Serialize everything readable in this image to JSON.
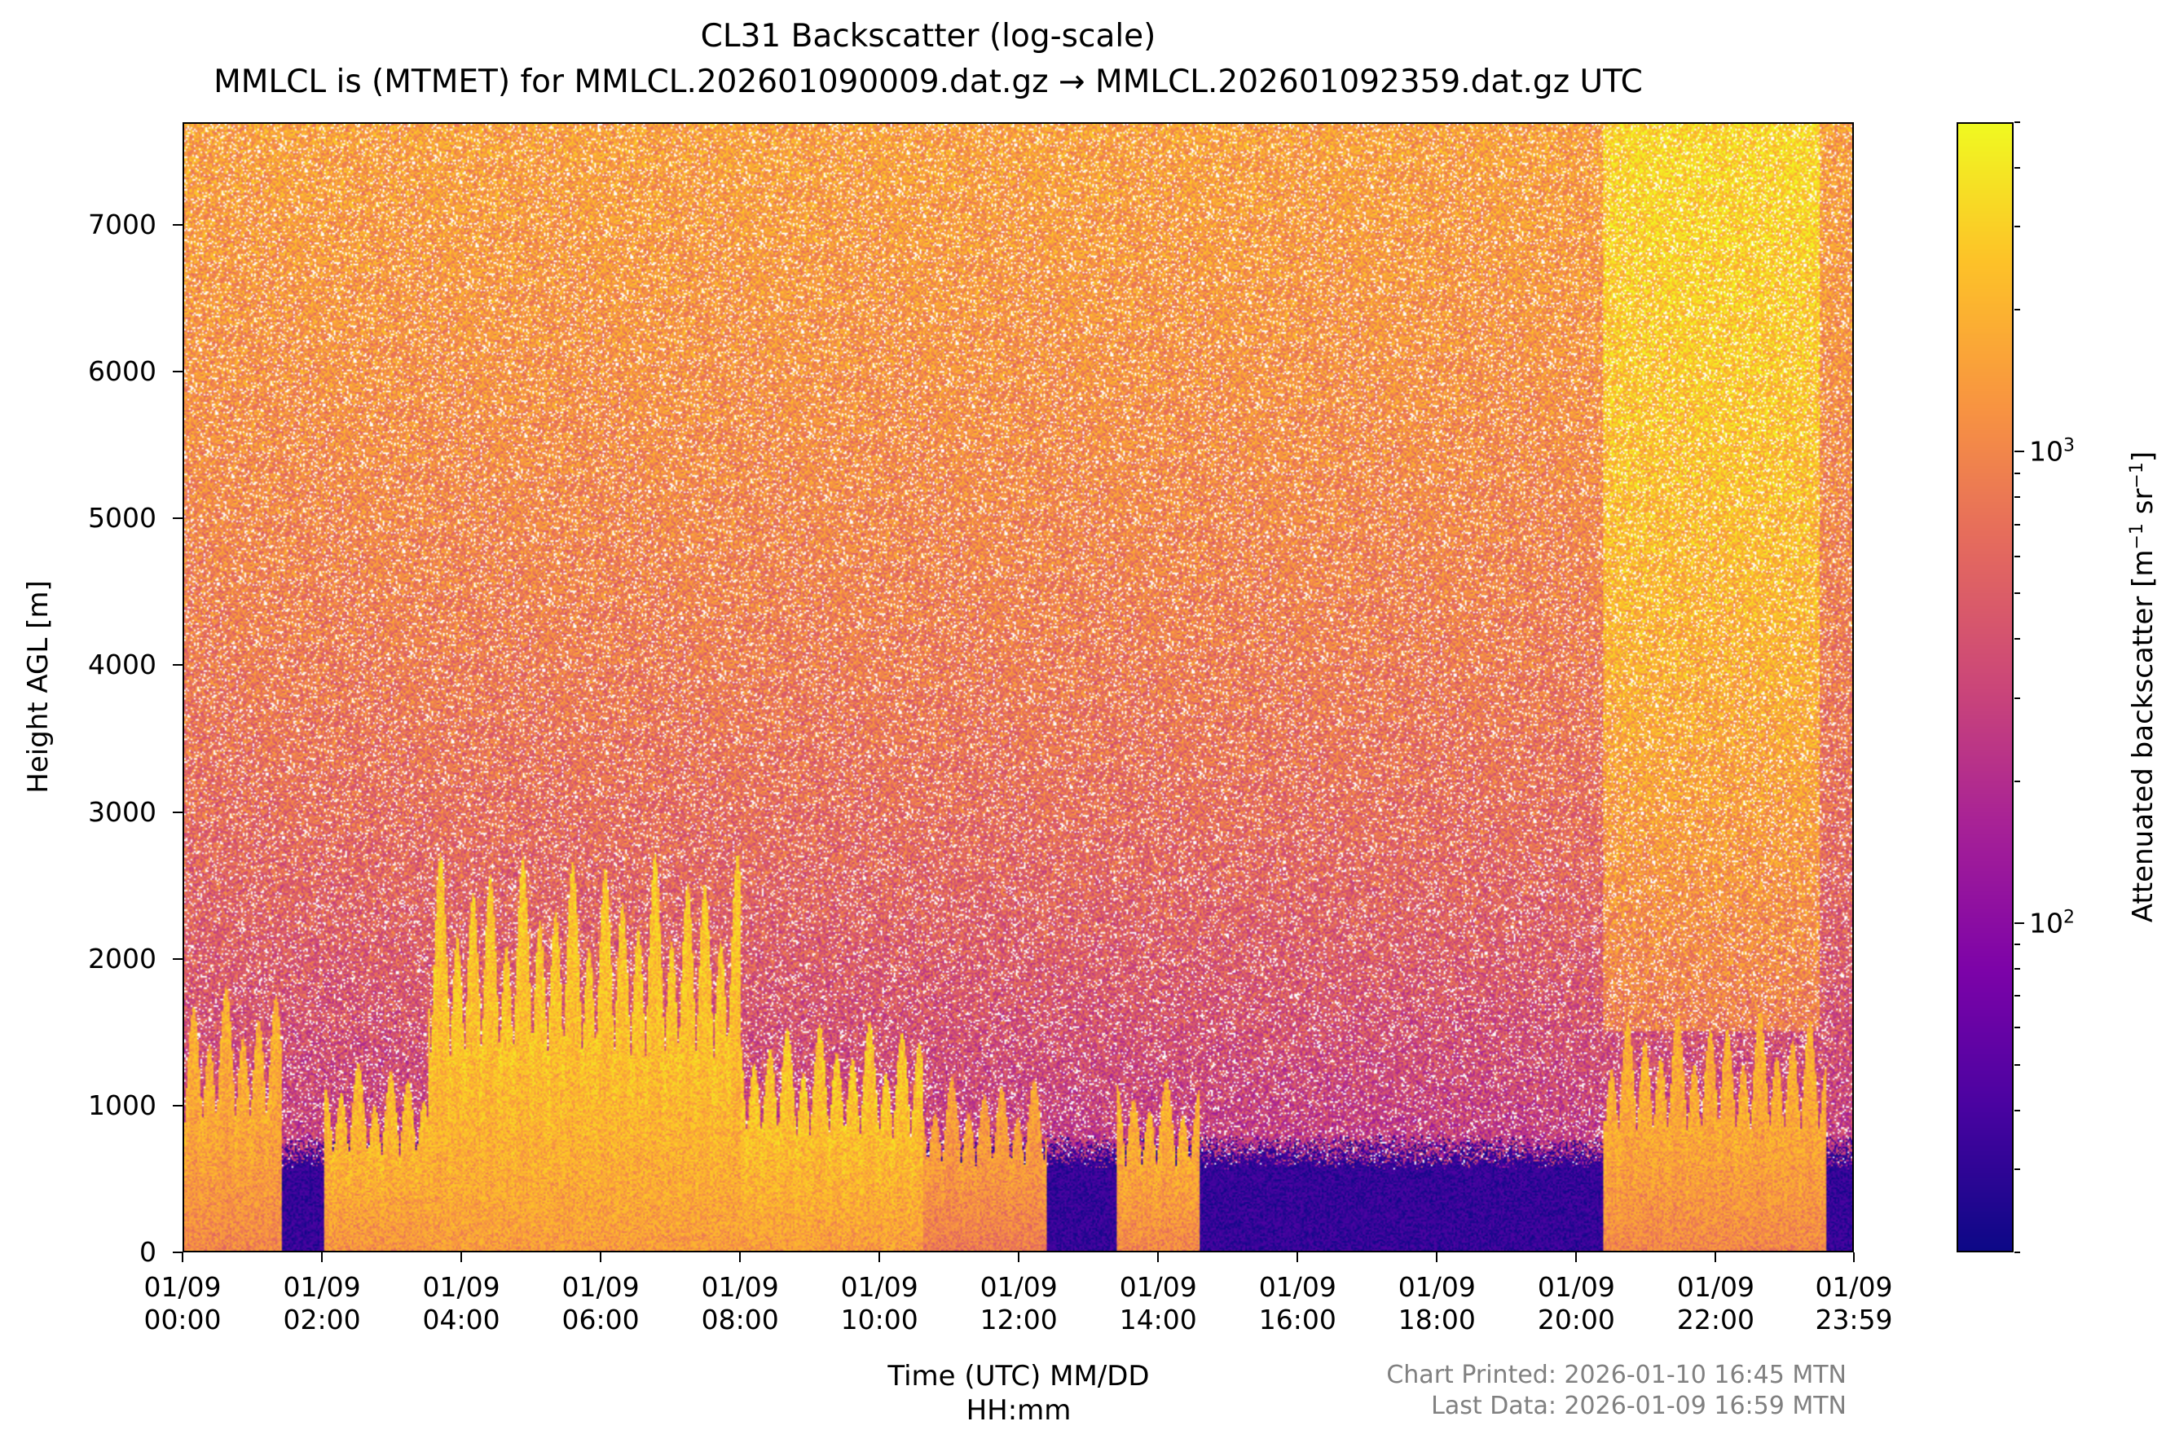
{
  "chart_data": {
    "type": "heatmap",
    "title": "CL31 Backscatter (log-scale)",
    "subtitle": "MMLCL is (MTMET) for MMLCL.202601090009.dat.gz → MMLCL.202601092359.dat.gz UTC",
    "xlabel": "Time (UTC) MM/DD\nHH:mm",
    "xlabel_line1": "Time (UTC) MM/DD",
    "xlabel_line2": "HH:mm",
    "ylabel": "Height AGL [m]",
    "colorbar_label": "Attenuated backscatter [m⁻¹ sr⁻¹]",
    "colorbar_label_main": "Attenuated backscatter [m",
    "colorbar_label_sup1": "−1",
    "colorbar_label_mid": " sr",
    "colorbar_label_sup2": "−1",
    "colorbar_label_end": "]",
    "colormap": "plasma",
    "colorbar_scale": "log",
    "colorbar_range": [
      20,
      5000
    ],
    "colorbar_ticks": [
      {
        "value": 1000,
        "base": "10",
        "exp": "3"
      },
      {
        "value": 100,
        "base": "10",
        "exp": "2"
      }
    ],
    "xlim_hours": [
      0,
      23.983
    ],
    "ylim": [
      0,
      7700
    ],
    "y_ticks": [
      "0",
      "1000",
      "2000",
      "3000",
      "4000",
      "5000",
      "6000",
      "7000"
    ],
    "y_tick_values": [
      0,
      1000,
      2000,
      3000,
      4000,
      5000,
      6000,
      7000
    ],
    "x_ticks": [
      {
        "date": "01/09",
        "time": "00:00",
        "hours": 0
      },
      {
        "date": "01/09",
        "time": "02:00",
        "hours": 2
      },
      {
        "date": "01/09",
        "time": "04:00",
        "hours": 4
      },
      {
        "date": "01/09",
        "time": "06:00",
        "hours": 6
      },
      {
        "date": "01/09",
        "time": "08:00",
        "hours": 8
      },
      {
        "date": "01/09",
        "time": "10:00",
        "hours": 10
      },
      {
        "date": "01/09",
        "time": "12:00",
        "hours": 12
      },
      {
        "date": "01/09",
        "time": "14:00",
        "hours": 14
      },
      {
        "date": "01/09",
        "time": "16:00",
        "hours": 16
      },
      {
        "date": "01/09",
        "time": "18:00",
        "hours": 18
      },
      {
        "date": "01/09",
        "time": "20:00",
        "hours": 20
      },
      {
        "date": "01/09",
        "time": "22:00",
        "hours": 22
      },
      {
        "date": "01/09",
        "time": "23:59",
        "hours": 23.983
      }
    ],
    "cloud_layers": [
      {
        "start_hours": 0.0,
        "end_hours": 1.4,
        "top_m": 1600,
        "intensity": 2500
      },
      {
        "start_hours": 2.0,
        "end_hours": 3.5,
        "top_m": 1150,
        "intensity": 3000
      },
      {
        "start_hours": 3.5,
        "end_hours": 8.0,
        "top_m": 2400,
        "intensity": 3500
      },
      {
        "start_hours": 8.0,
        "end_hours": 10.6,
        "top_m": 1400,
        "intensity": 3500
      },
      {
        "start_hours": 10.6,
        "end_hours": 12.4,
        "top_m": 1050,
        "intensity": 2000
      },
      {
        "start_hours": 13.4,
        "end_hours": 14.6,
        "top_m": 1050,
        "intensity": 2500
      },
      {
        "start_hours": 20.4,
        "end_hours": 23.6,
        "top_m": 1450,
        "intensity": 2500
      }
    ],
    "boundary_layer_top_m": 800,
    "noise_level_top": 1500,
    "noise_level_low": 120,
    "upper_noise_enhanced_window_hours": [
      20.4,
      23.5
    ]
  },
  "footer": {
    "chart_printed": "Chart Printed: 2026-01-10 16:45 MTN",
    "last_data": "Last Data: 2026-01-09 16:59 MTN"
  }
}
